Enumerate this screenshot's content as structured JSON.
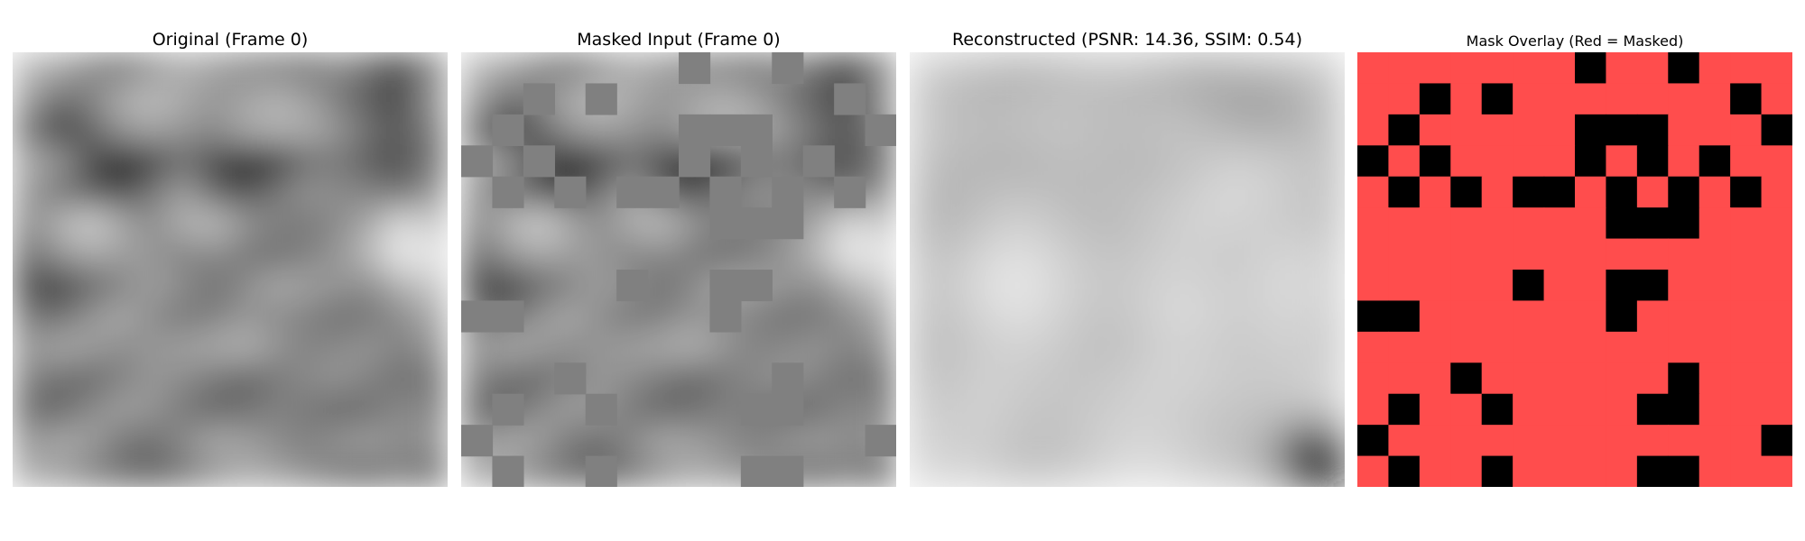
{
  "panels": [
    {
      "title": "Original (Frame 0)"
    },
    {
      "title": "Masked Input (Frame 0)"
    },
    {
      "title": "Reconstructed (PSNR: 14.36, SSIM: 0.54)"
    },
    {
      "title": "Mask Overlay (Red = Masked)"
    }
  ],
  "colors": {
    "masked_overlay": "#ff4d4d",
    "visible_overlay": "#000000",
    "masked_fill": "#808080"
  },
  "grid_size": 14,
  "original_gray": [
    [
      188,
      170,
      140,
      120,
      150,
      175,
      160,
      140,
      130,
      120,
      140,
      110,
      80,
      140
    ],
    [
      160,
      110,
      130,
      175,
      190,
      170,
      150,
      165,
      180,
      160,
      120,
      90,
      70,
      150
    ],
    [
      120,
      60,
      100,
      150,
      165,
      150,
      140,
      170,
      180,
      175,
      150,
      110,
      90,
      130
    ],
    [
      170,
      150,
      80,
      30,
      60,
      110,
      70,
      30,
      50,
      110,
      120,
      90,
      80,
      120
    ],
    [
      155,
      120,
      90,
      70,
      120,
      160,
      100,
      80,
      120,
      150,
      140,
      130,
      110,
      150
    ],
    [
      140,
      180,
      210,
      170,
      140,
      180,
      190,
      150,
      130,
      120,
      140,
      170,
      220,
      200
    ],
    [
      110,
      150,
      170,
      160,
      150,
      130,
      140,
      120,
      110,
      130,
      150,
      190,
      235,
      230
    ],
    [
      80,
      60,
      100,
      130,
      160,
      140,
      110,
      140,
      170,
      160,
      150,
      140,
      180,
      200
    ],
    [
      120,
      110,
      150,
      170,
      140,
      120,
      130,
      150,
      140,
      130,
      110,
      120,
      140,
      170
    ],
    [
      150,
      170,
      160,
      140,
      150,
      160,
      170,
      180,
      150,
      130,
      140,
      150,
      130,
      150
    ],
    [
      130,
      110,
      100,
      130,
      150,
      140,
      120,
      100,
      120,
      140,
      150,
      130,
      110,
      120
    ],
    [
      110,
      100,
      140,
      160,
      150,
      120,
      100,
      110,
      130,
      120,
      100,
      110,
      140,
      130
    ],
    [
      150,
      170,
      160,
      120,
      110,
      140,
      170,
      160,
      140,
      130,
      150,
      160,
      140,
      150
    ],
    [
      170,
      160,
      130,
      110,
      100,
      120,
      150,
      170,
      160,
      140,
      120,
      110,
      130,
      110
    ]
  ],
  "reconstructed_gray": [
    [
      205,
      200,
      190,
      180,
      185,
      195,
      200,
      195,
      185,
      175,
      185,
      190,
      195,
      205
    ],
    [
      195,
      185,
      180,
      185,
      190,
      190,
      185,
      180,
      180,
      170,
      160,
      155,
      175,
      195
    ],
    [
      200,
      195,
      190,
      195,
      200,
      195,
      190,
      195,
      200,
      190,
      180,
      175,
      180,
      195
    ],
    [
      190,
      185,
      180,
      175,
      185,
      190,
      185,
      180,
      190,
      200,
      210,
      205,
      200,
      190
    ],
    [
      185,
      180,
      190,
      195,
      190,
      185,
      190,
      195,
      200,
      210,
      220,
      210,
      200,
      195
    ],
    [
      180,
      185,
      200,
      210,
      200,
      190,
      185,
      195,
      205,
      215,
      210,
      205,
      200,
      195
    ],
    [
      190,
      200,
      215,
      225,
      215,
      200,
      195,
      200,
      210,
      205,
      200,
      210,
      215,
      205
    ],
    [
      195,
      205,
      225,
      235,
      220,
      205,
      200,
      205,
      215,
      210,
      205,
      215,
      220,
      210
    ],
    [
      190,
      200,
      215,
      225,
      215,
      200,
      195,
      205,
      220,
      215,
      205,
      210,
      215,
      205
    ],
    [
      185,
      195,
      205,
      210,
      205,
      195,
      190,
      200,
      210,
      205,
      200,
      205,
      210,
      200
    ],
    [
      190,
      200,
      210,
      205,
      200,
      195,
      200,
      210,
      215,
      210,
      205,
      200,
      205,
      210
    ],
    [
      200,
      205,
      210,
      200,
      195,
      200,
      205,
      210,
      205,
      200,
      195,
      195,
      200,
      205
    ],
    [
      205,
      210,
      205,
      195,
      190,
      200,
      210,
      215,
      210,
      200,
      190,
      185,
      60,
      40
    ],
    [
      210,
      215,
      205,
      195,
      195,
      205,
      215,
      225,
      215,
      205,
      195,
      175,
      10,
      5
    ]
  ],
  "mask": [
    [
      1,
      1,
      1,
      1,
      1,
      1,
      1,
      0,
      1,
      1,
      0,
      1,
      1,
      1
    ],
    [
      1,
      1,
      0,
      1,
      0,
      1,
      1,
      1,
      1,
      1,
      1,
      1,
      0,
      1
    ],
    [
      1,
      0,
      1,
      1,
      1,
      1,
      1,
      0,
      0,
      0,
      1,
      1,
      1,
      0
    ],
    [
      0,
      1,
      0,
      1,
      1,
      1,
      1,
      0,
      1,
      0,
      1,
      0,
      1,
      1
    ],
    [
      1,
      0,
      1,
      0,
      1,
      0,
      0,
      1,
      0,
      1,
      0,
      1,
      0,
      1
    ],
    [
      1,
      1,
      1,
      1,
      1,
      1,
      1,
      1,
      0,
      0,
      0,
      1,
      1,
      1
    ],
    [
      1,
      1,
      1,
      1,
      1,
      1,
      1,
      1,
      1,
      1,
      1,
      1,
      1,
      1
    ],
    [
      1,
      1,
      1,
      1,
      1,
      0,
      1,
      1,
      0,
      0,
      1,
      1,
      1,
      1
    ],
    [
      0,
      0,
      1,
      1,
      1,
      1,
      1,
      1,
      0,
      1,
      1,
      1,
      1,
      1
    ],
    [
      1,
      1,
      1,
      1,
      1,
      1,
      1,
      1,
      1,
      1,
      1,
      1,
      1,
      1
    ],
    [
      1,
      1,
      1,
      0,
      1,
      1,
      1,
      1,
      1,
      1,
      0,
      1,
      1,
      1
    ],
    [
      1,
      0,
      1,
      1,
      0,
      1,
      1,
      1,
      1,
      0,
      0,
      1,
      1,
      1
    ],
    [
      0,
      1,
      1,
      1,
      1,
      1,
      1,
      1,
      1,
      1,
      1,
      1,
      1,
      0
    ],
    [
      1,
      0,
      1,
      1,
      0,
      1,
      1,
      1,
      1,
      0,
      0,
      1,
      1,
      1
    ]
  ]
}
